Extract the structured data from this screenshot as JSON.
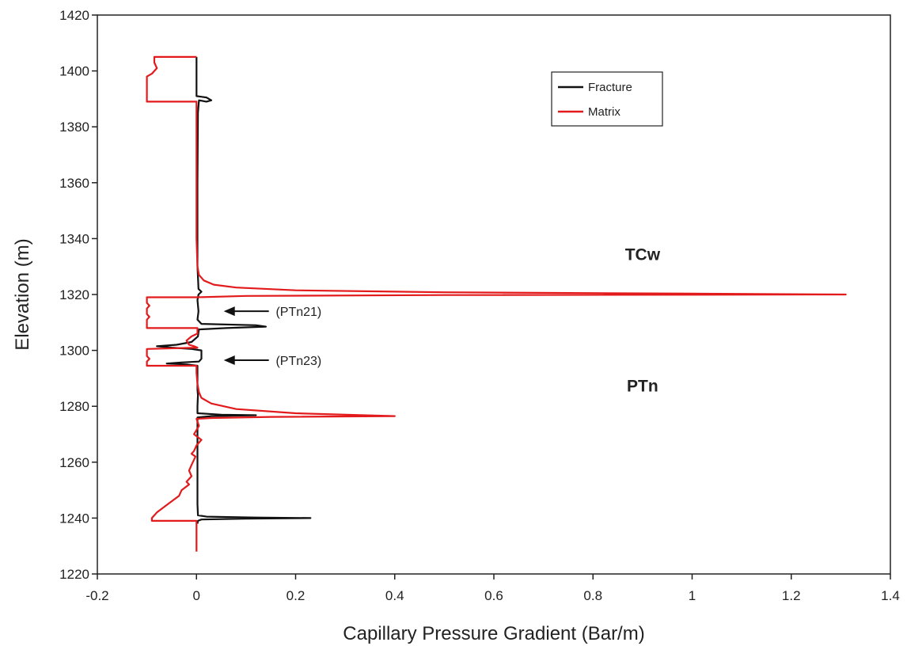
{
  "chart_data": {
    "type": "line",
    "title": "",
    "xlabel": "Capillary Pressure Gradient (Bar/m)",
    "ylabel": "Elevation (m)",
    "xlim": [
      -0.2,
      1.4
    ],
    "ylim": [
      1220,
      1420
    ],
    "x_ticks": [
      -0.2,
      0,
      0.2,
      0.4,
      0.6,
      0.8,
      1,
      1.2,
      1.4
    ],
    "x_tick_labels": [
      "-0.2",
      "0",
      "0.2",
      "0.4",
      "0.6",
      "0.8",
      "1",
      "1.2",
      "1.4"
    ],
    "y_ticks": [
      1220,
      1240,
      1260,
      1280,
      1300,
      1320,
      1340,
      1360,
      1380,
      1400,
      1420
    ],
    "y_tick_labels": [
      "1220",
      "1240",
      "1260",
      "1280",
      "1300",
      "1320",
      "1340",
      "1360",
      "1380",
      "1400",
      "1420"
    ],
    "grid": false,
    "legend_position": "top-right",
    "series": [
      {
        "name": "Fracture",
        "color": "#111111",
        "points": [
          [
            0,
            1405
          ],
          [
            0,
            1391
          ],
          [
            0.02,
            1390.5
          ],
          [
            0.03,
            1389.5
          ],
          [
            0.02,
            1389
          ],
          [
            0.005,
            1389.5
          ],
          [
            0.003,
            1385
          ],
          [
            0.002,
            1360
          ],
          [
            0.002,
            1330
          ],
          [
            0.004,
            1322
          ],
          [
            0.01,
            1321
          ],
          [
            0.004,
            1320
          ],
          [
            0.002,
            1318
          ],
          [
            0.004,
            1314
          ],
          [
            0.002,
            1311
          ],
          [
            0.01,
            1309.5
          ],
          [
            0.12,
            1309
          ],
          [
            0.14,
            1308.5
          ],
          [
            0.06,
            1308
          ],
          [
            0.005,
            1307.5
          ],
          [
            0.003,
            1305
          ],
          [
            -0.01,
            1303
          ],
          [
            -0.04,
            1302
          ],
          [
            -0.08,
            1301.5
          ],
          [
            -0.05,
            1301
          ],
          [
            -0.01,
            1300.5
          ],
          [
            0.01,
            1300
          ],
          [
            0.01,
            1297
          ],
          [
            0.005,
            1296
          ],
          [
            -0.03,
            1295.7
          ],
          [
            -0.06,
            1295.3
          ],
          [
            -0.02,
            1295
          ],
          [
            0.002,
            1294.5
          ],
          [
            0.002,
            1286
          ],
          [
            0.003,
            1284
          ],
          [
            0.002,
            1280
          ],
          [
            0.002,
            1277.5
          ],
          [
            0.05,
            1277
          ],
          [
            0.12,
            1276.8
          ],
          [
            0.03,
            1276.5
          ],
          [
            0.002,
            1276
          ],
          [
            0.002,
            1250
          ],
          [
            0.002,
            1245
          ],
          [
            0.003,
            1241
          ],
          [
            0.02,
            1240.5
          ],
          [
            0.12,
            1240.2
          ],
          [
            0.23,
            1240
          ],
          [
            0.1,
            1239.8
          ],
          [
            0.01,
            1239.5
          ],
          [
            0.003,
            1239
          ],
          [
            0.002,
            1238
          ]
        ]
      },
      {
        "name": "Matrix",
        "color": "#e31a1c",
        "points": [
          [
            0,
            1405
          ],
          [
            -0.085,
            1405
          ],
          [
            -0.085,
            1403
          ],
          [
            -0.08,
            1401
          ],
          [
            -0.09,
            1399
          ],
          [
            -0.1,
            1398
          ],
          [
            -0.1,
            1389
          ],
          [
            0,
            1389
          ],
          [
            0,
            1385
          ],
          [
            0,
            1360
          ],
          [
            0,
            1340
          ],
          [
            0.002,
            1330
          ],
          [
            0.005,
            1327
          ],
          [
            0.015,
            1325
          ],
          [
            0.035,
            1323.5
          ],
          [
            0.08,
            1322.5
          ],
          [
            0.2,
            1321.5
          ],
          [
            0.5,
            1320.8
          ],
          [
            1.0,
            1320.3
          ],
          [
            1.31,
            1320
          ],
          [
            0.5,
            1319.8
          ],
          [
            0.1,
            1319.5
          ],
          [
            0,
            1319
          ],
          [
            -0.1,
            1319
          ],
          [
            -0.1,
            1317
          ],
          [
            -0.095,
            1316
          ],
          [
            -0.1,
            1315
          ],
          [
            -0.1,
            1313
          ],
          [
            -0.095,
            1312
          ],
          [
            -0.1,
            1311
          ],
          [
            -0.1,
            1308
          ],
          [
            0.002,
            1308
          ],
          [
            0.002,
            1306
          ],
          [
            -0.01,
            1305
          ],
          [
            -0.02,
            1303.5
          ],
          [
            -0.015,
            1302
          ],
          [
            -0.005,
            1301.5
          ],
          [
            0.002,
            1301
          ],
          [
            -0.1,
            1300.5
          ],
          [
            -0.1,
            1298
          ],
          [
            -0.095,
            1297
          ],
          [
            -0.1,
            1296
          ],
          [
            -0.1,
            1294.5
          ],
          [
            0,
            1294.5
          ],
          [
            0,
            1292
          ],
          [
            0.002,
            1288
          ],
          [
            0.005,
            1285
          ],
          [
            0.01,
            1283
          ],
          [
            0.03,
            1281
          ],
          [
            0.08,
            1279
          ],
          [
            0.2,
            1277.5
          ],
          [
            0.4,
            1276.5
          ],
          [
            0.15,
            1276.2
          ],
          [
            0.03,
            1275.8
          ],
          [
            0,
            1275.5
          ],
          [
            0.005,
            1273
          ],
          [
            -0.005,
            1270
          ],
          [
            0.01,
            1268
          ],
          [
            0,
            1266
          ],
          [
            -0.005,
            1264
          ],
          [
            -0.01,
            1263
          ],
          [
            -0.002,
            1262
          ],
          [
            -0.01,
            1259
          ],
          [
            -0.015,
            1257
          ],
          [
            -0.01,
            1255
          ],
          [
            -0.02,
            1253
          ],
          [
            -0.015,
            1252
          ],
          [
            -0.03,
            1250
          ],
          [
            -0.035,
            1248
          ],
          [
            -0.05,
            1246
          ],
          [
            -0.065,
            1244
          ],
          [
            -0.08,
            1242
          ],
          [
            -0.09,
            1240
          ],
          [
            -0.09,
            1239
          ],
          [
            0,
            1239
          ],
          [
            0,
            1228
          ]
        ]
      }
    ],
    "annotations": [
      {
        "text": "TCw",
        "x": 0.9,
        "y": 1334
      },
      {
        "text": "PTn",
        "x": 0.9,
        "y": 1287
      },
      {
        "text": "(PTn21)",
        "x": 0.16,
        "y": 1314
      },
      {
        "text": "(PTn23)",
        "x": 0.16,
        "y": 1296.5
      }
    ],
    "arrows": [
      {
        "from": [
          0.146,
          1314
        ],
        "to": [
          0.055,
          1314
        ]
      },
      {
        "from": [
          0.146,
          1296.5
        ],
        "to": [
          0.055,
          1296.5
        ]
      }
    ]
  }
}
